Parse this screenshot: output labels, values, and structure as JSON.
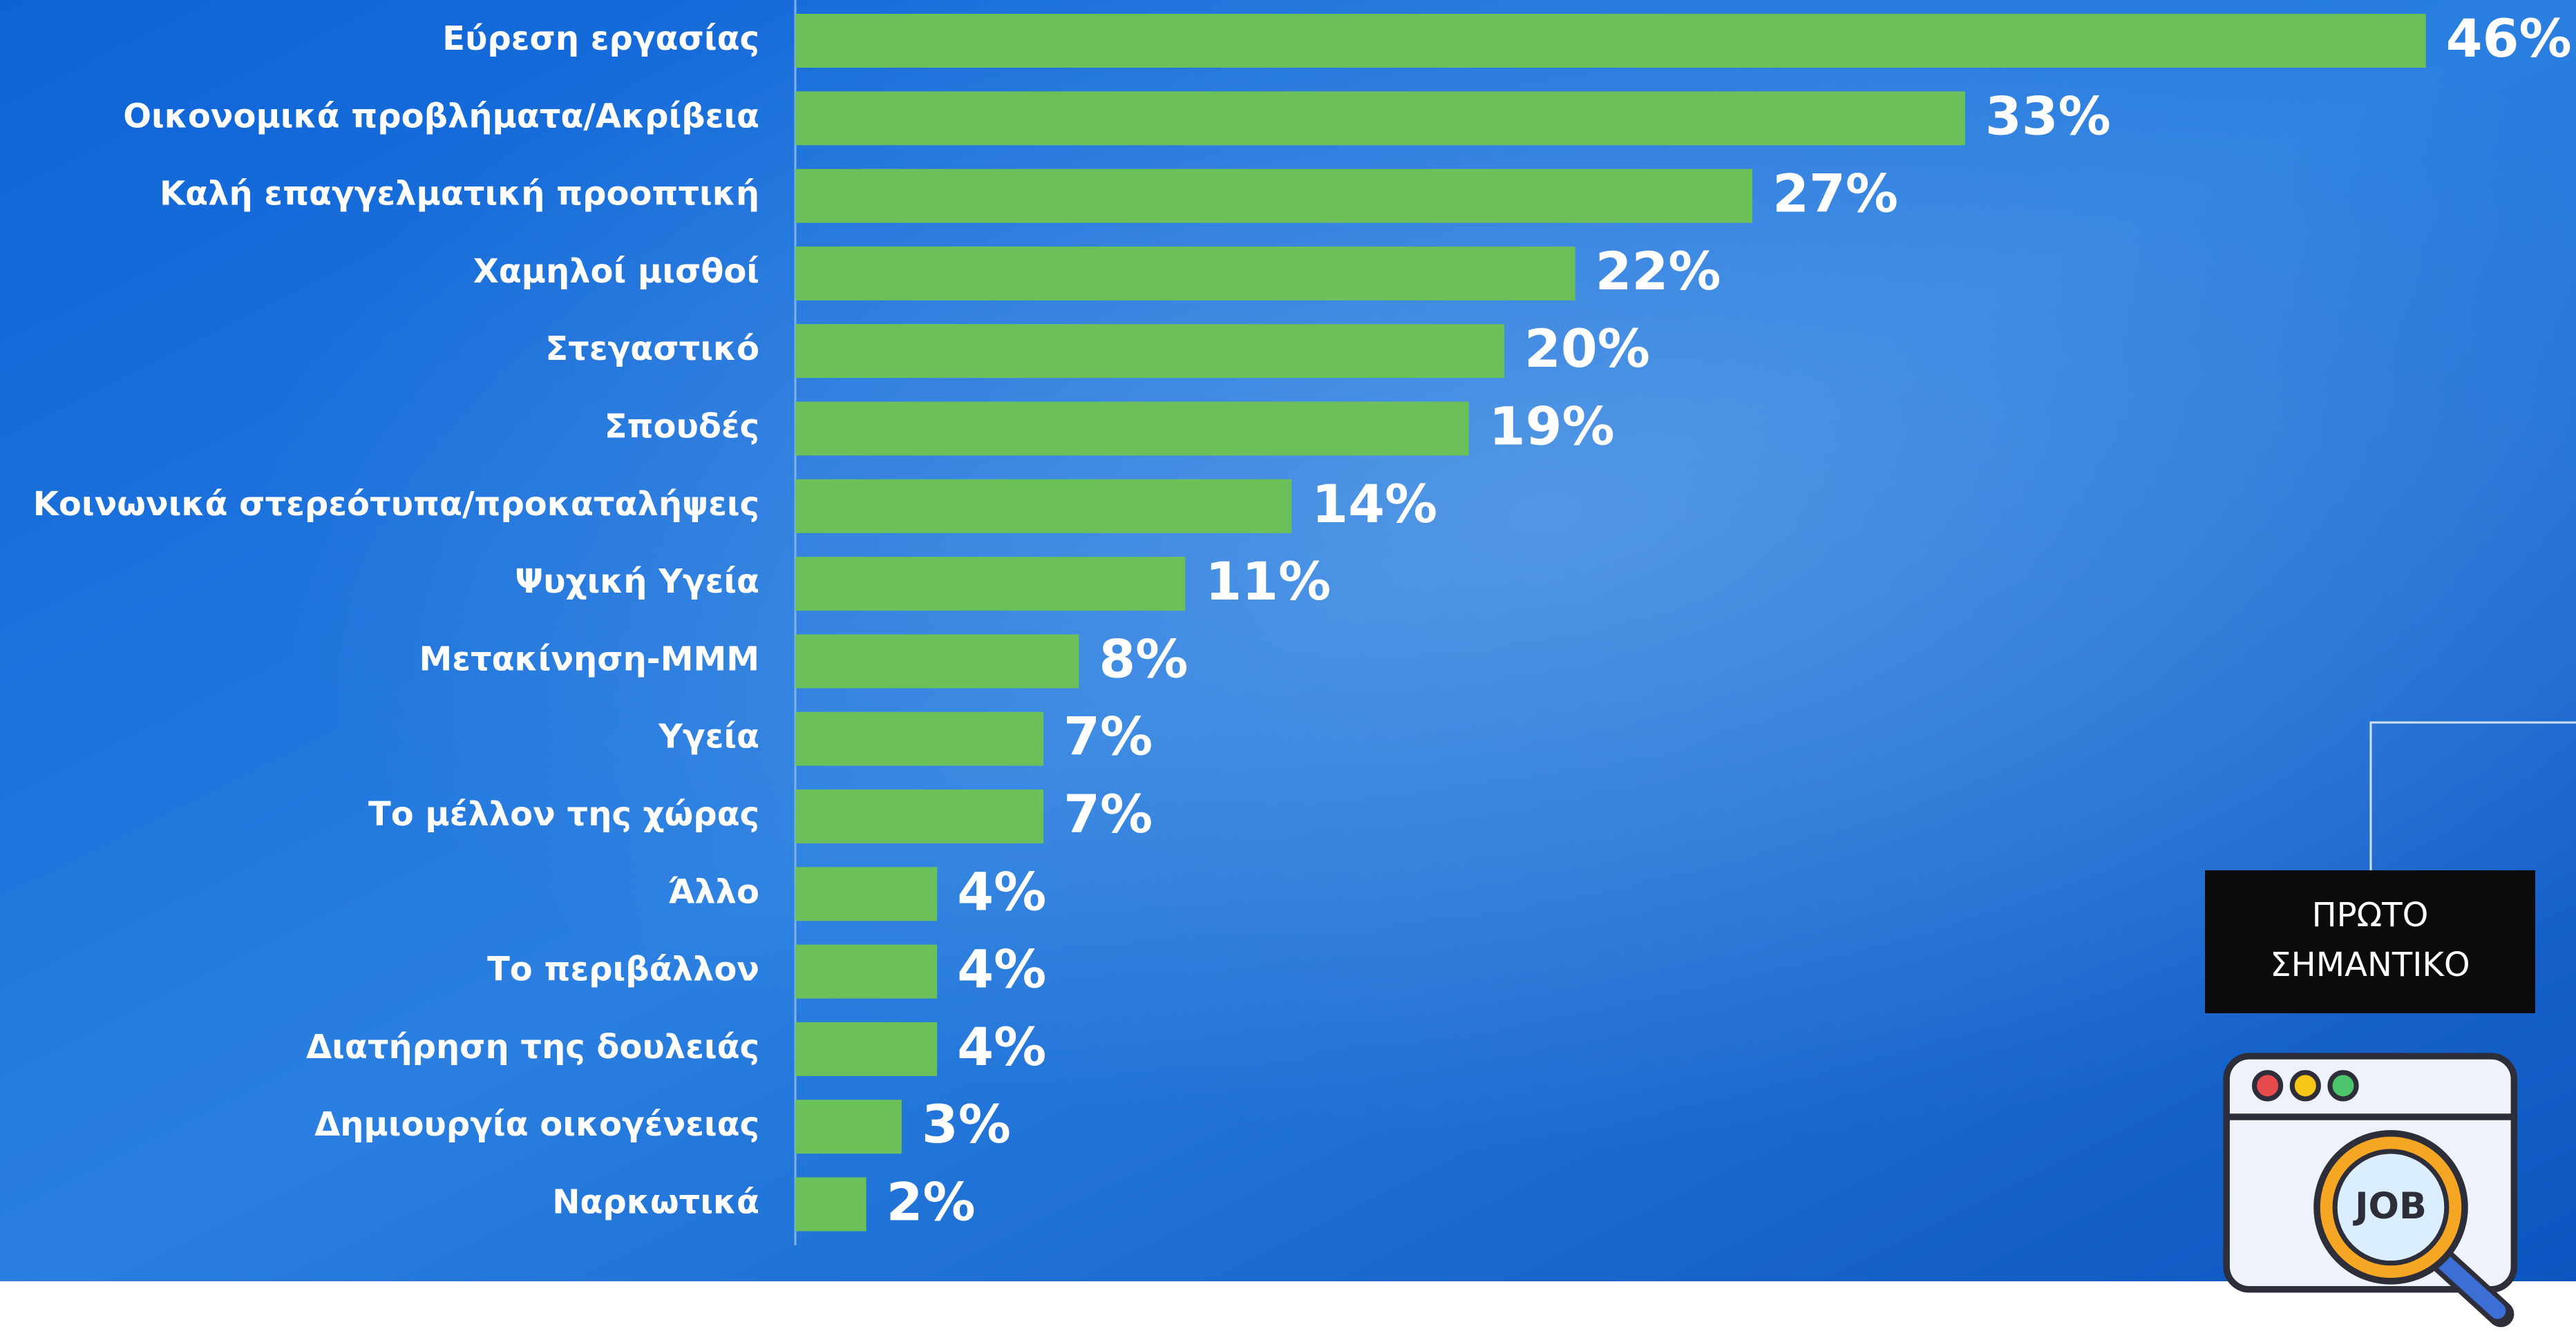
{
  "chart_data": {
    "type": "bar",
    "orientation": "horizontal",
    "categories": [
      "Εύρεση εργασίας",
      "Οικονομικά προβλήματα/Ακρίβεια",
      "Καλή επαγγελματική προοπτική",
      "Χαμηλοί μισθοί",
      "Στεγαστικό",
      "Σπουδές",
      "Κοινωνικά στερεότυπα/προκαταλήψεις",
      "Ψυχική Υγεία",
      "Μετακίνηση-ΜΜΜ",
      "Υγεία",
      "Το μέλλον της χώρας",
      "Άλλο",
      "Το περιβάλλον",
      "Διατήρηση της δουλειάς",
      "Δημιουργία οικογένειας",
      "Ναρκωτικά"
    ],
    "values": [
      46,
      33,
      27,
      22,
      20,
      19,
      14,
      11,
      8,
      7,
      7,
      4,
      4,
      4,
      3,
      2
    ],
    "value_labels": [
      "46%",
      "33%",
      "27%",
      "22%",
      "20%",
      "19%",
      "14%",
      "11%",
      "8%",
      "7%",
      "7%",
      "4%",
      "4%",
      "4%",
      "3%",
      "2%"
    ],
    "color": "#6cc05a",
    "xlim": [
      0,
      50
    ]
  },
  "badge": {
    "lines": [
      "ΠΡΩΤΟ",
      "ΣΗΜΑΝΤΙΚΟ"
    ],
    "icon_text": "JOB"
  }
}
